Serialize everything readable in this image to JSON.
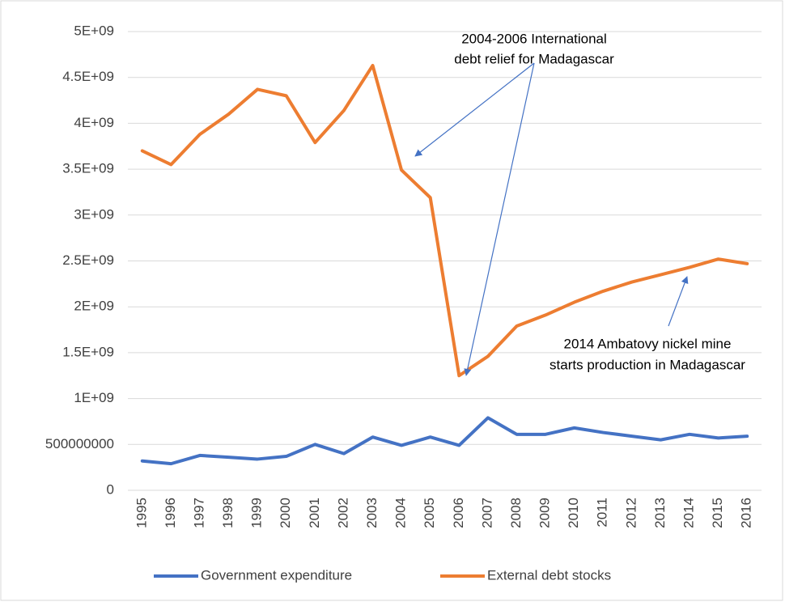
{
  "chart_data": {
    "type": "line",
    "categories": [
      "1995",
      "1996",
      "1997",
      "1998",
      "1999",
      "2000",
      "2001",
      "2002",
      "2003",
      "2004",
      "2005",
      "2006",
      "2007",
      "2008",
      "2009",
      "2010",
      "2011",
      "2012",
      "2013",
      "2014",
      "2015",
      "2016"
    ],
    "series": [
      {
        "name": "Government expenditure",
        "color": "#4472c4",
        "values": [
          320000000,
          290000000,
          380000000,
          360000000,
          340000000,
          370000000,
          500000000,
          400000000,
          580000000,
          490000000,
          580000000,
          490000000,
          790000000,
          610000000,
          610000000,
          680000000,
          630000000,
          590000000,
          550000000,
          610000000,
          570000000,
          590000000
        ]
      },
      {
        "name": "External debt stocks",
        "color": "#ed7d31",
        "values": [
          3700000000,
          3550000000,
          3880000000,
          4100000000,
          4370000000,
          4300000000,
          3790000000,
          4140000000,
          4630000000,
          3490000000,
          3190000000,
          1250000000,
          1460000000,
          1790000000,
          1910000000,
          2050000000,
          2170000000,
          2270000000,
          2350000000,
          2430000000,
          2520000000,
          2470000000
        ]
      }
    ],
    "ylim": [
      0,
      5000000000
    ],
    "yticks": [
      0,
      500000000,
      {
        "value": 1000000000,
        "label": "1E+09"
      },
      {
        "value": 1500000000,
        "label": "1.5E+09"
      },
      {
        "value": 2000000000,
        "label": "2E+09"
      },
      {
        "value": 2500000000,
        "label": "2.5E+09"
      },
      {
        "value": 3000000000,
        "label": "3E+09"
      },
      {
        "value": 3500000000,
        "label": "3.5E+09"
      },
      {
        "value": 4000000000,
        "label": "4E+09"
      },
      {
        "value": 4500000000,
        "label": "4.5E+09"
      },
      {
        "value": 5000000000,
        "label": "5E+09"
      }
    ],
    "grid": true,
    "legend": "bottom",
    "annotations": [
      {
        "lines": [
          "2004-2006 International",
          "debt relief for Madagascar"
        ]
      },
      {
        "lines": [
          "2014 Ambatovy nickel mine",
          "starts production in Madagascar"
        ]
      }
    ]
  }
}
